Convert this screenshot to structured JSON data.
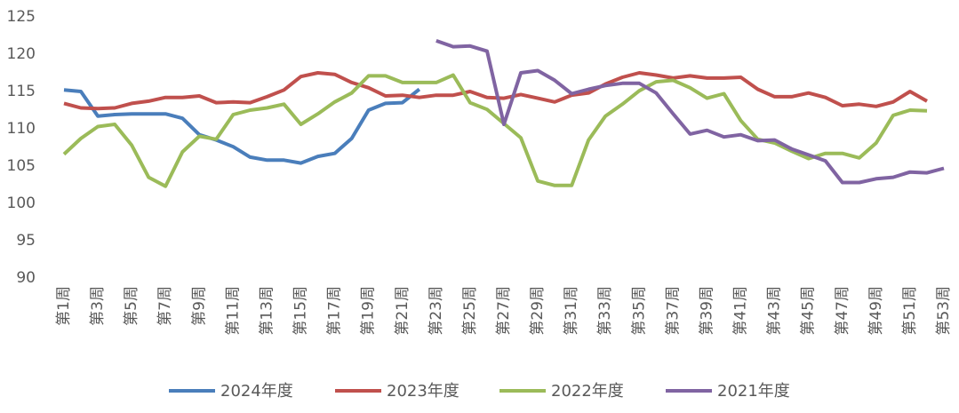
{
  "chart_data": {
    "type": "line",
    "categories": [
      "第1周",
      null,
      "第3周",
      null,
      "第5周",
      null,
      "第7周",
      null,
      "第9周",
      null,
      "第11周",
      null,
      "第13周",
      null,
      "第15周",
      null,
      "第17周",
      null,
      "第19周",
      null,
      "第21周",
      null,
      "第23周",
      null,
      "第25周",
      null,
      "第27周",
      null,
      "第29周",
      null,
      "第31周",
      null,
      "第33周",
      null,
      "第35周",
      null,
      "第37周",
      null,
      "第39周",
      null,
      "第41周",
      null,
      "第43周",
      null,
      "第45周",
      null,
      "第47周",
      null,
      "第49周",
      null,
      "第51周",
      null,
      "第53周"
    ],
    "ylim": [
      90,
      125
    ],
    "yticks": [
      90,
      95,
      100,
      105,
      110,
      115,
      120,
      125
    ],
    "legend": "bottom",
    "series": [
      {
        "name": "2024年度",
        "color": "#4a7ebb",
        "values": [
          115.2,
          115.0,
          111.7,
          111.9,
          112.0,
          112.0,
          112.0,
          111.4,
          109.2,
          108.5,
          107.6,
          106.2,
          105.8,
          105.8,
          105.4,
          106.3,
          106.7,
          108.7,
          112.5,
          113.4,
          113.5,
          115.3,
          null,
          null,
          null,
          null,
          null,
          null,
          null,
          null,
          null,
          null,
          null,
          null,
          null,
          null,
          null,
          null,
          null,
          null,
          null,
          null,
          null,
          null,
          null,
          null,
          null,
          null,
          null,
          null,
          null,
          null,
          null
        ]
      },
      {
        "name": "2023年度",
        "color": "#c0504d",
        "values": [
          113.4,
          112.8,
          112.7,
          112.8,
          113.4,
          113.7,
          114.2,
          114.2,
          114.4,
          113.5,
          113.6,
          113.5,
          114.3,
          115.2,
          117.0,
          117.5,
          117.3,
          116.2,
          115.5,
          114.4,
          114.5,
          114.2,
          114.5,
          114.5,
          115.0,
          114.2,
          114.1,
          114.6,
          114.1,
          113.6,
          114.5,
          114.8,
          116.0,
          116.9,
          117.5,
          117.2,
          116.8,
          117.1,
          116.8,
          116.8,
          116.9,
          115.3,
          114.3,
          114.3,
          114.8,
          114.2,
          113.1,
          113.3,
          113.0,
          113.6,
          115.0,
          113.7,
          null
        ]
      },
      {
        "name": "2022年度",
        "color": "#9bbb59",
        "values": [
          106.6,
          108.7,
          110.3,
          110.6,
          107.8,
          103.5,
          102.3,
          106.9,
          109.0,
          108.6,
          111.9,
          112.5,
          112.8,
          113.3,
          110.6,
          112.0,
          113.6,
          114.8,
          117.1,
          117.1,
          116.2,
          116.2,
          116.2,
          117.2,
          113.5,
          112.6,
          110.7,
          108.8,
          103.0,
          102.4,
          102.4,
          108.5,
          111.7,
          113.3,
          115.1,
          116.3,
          116.5,
          115.5,
          114.1,
          114.7,
          111.1,
          108.6,
          108.1,
          107.0,
          106.0,
          106.7,
          106.7,
          106.1,
          108.1,
          111.8,
          112.5,
          112.4,
          null
        ]
      },
      {
        "name": "2021年度",
        "color": "#8064a2",
        "values": [
          null,
          null,
          null,
          null,
          null,
          null,
          null,
          null,
          null,
          null,
          null,
          null,
          null,
          null,
          null,
          null,
          null,
          null,
          null,
          null,
          null,
          null,
          121.8,
          121.0,
          121.1,
          120.4,
          110.6,
          117.5,
          117.8,
          116.5,
          114.7,
          115.3,
          115.8,
          116.1,
          116.1,
          114.8,
          112.0,
          109.3,
          109.8,
          108.9,
          109.2,
          108.4,
          108.5,
          107.3,
          106.5,
          105.7,
          102.8,
          102.8,
          103.3,
          103.5,
          104.2,
          104.1,
          104.7
        ]
      }
    ]
  }
}
